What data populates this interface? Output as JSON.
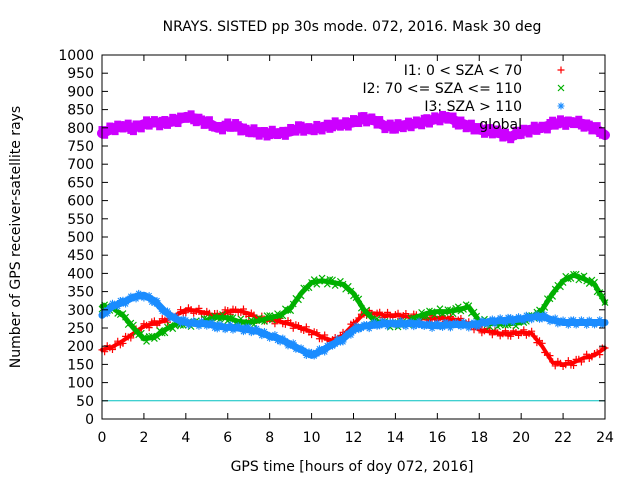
{
  "chart_data": {
    "type": "line",
    "title": "NRAYS. SISTED pp 30s mode. 072, 2016. Mask 30 deg",
    "xlabel": "GPS time [hours of doy 072, 2016]",
    "ylabel": "Number of GPS receiver-satellite rays",
    "xlim": [
      0,
      24
    ],
    "ylim": [
      0,
      1000
    ],
    "x_ticks": [
      "0",
      "2",
      "4",
      "6",
      "8",
      "10",
      "12",
      "14",
      "16",
      "18",
      "20",
      "22",
      "24"
    ],
    "y_ticks": [
      "0",
      "50",
      "100",
      "150",
      "200",
      "250",
      "300",
      "350",
      "400",
      "450",
      "500",
      "550",
      "600",
      "650",
      "700",
      "750",
      "800",
      "850",
      "900",
      "950",
      "1000"
    ],
    "legend_position": "top-right",
    "x": [
      0,
      0.5,
      1,
      1.5,
      2,
      2.5,
      3,
      3.5,
      4,
      4.5,
      5,
      5.5,
      6,
      6.5,
      7,
      7.5,
      8,
      8.5,
      9,
      9.5,
      10,
      10.5,
      11,
      11.5,
      12,
      12.5,
      13,
      13.5,
      14,
      14.5,
      15,
      15.5,
      16,
      16.5,
      17,
      17.5,
      18,
      18.5,
      19,
      19.5,
      20,
      20.5,
      21,
      21.5,
      22,
      22.5,
      23,
      23.5,
      24
    ],
    "series": [
      {
        "name": "I1: 0 < SZA < 70",
        "color": "#ff0000",
        "marker": "+",
        "values": [
          190,
          198,
          215,
          235,
          255,
          262,
          270,
          285,
          300,
          298,
          290,
          282,
          295,
          298,
          290,
          275,
          272,
          268,
          260,
          250,
          240,
          225,
          215,
          230,
          260,
          290,
          290,
          285,
          285,
          282,
          280,
          275,
          278,
          275,
          272,
          260,
          245,
          240,
          235,
          235,
          238,
          235,
          200,
          155,
          150,
          155,
          168,
          175,
          195
        ]
      },
      {
        "name": "I2: 70 <= SZA <= 110",
        "color": "#00b000",
        "marker": "x",
        "values": [
          310,
          305,
          285,
          250,
          220,
          225,
          245,
          260,
          262,
          262,
          270,
          280,
          278,
          268,
          265,
          270,
          278,
          285,
          305,
          345,
          375,
          380,
          375,
          370,
          345,
          300,
          270,
          262,
          258,
          262,
          280,
          290,
          295,
          295,
          300,
          308,
          270,
          262,
          262,
          262,
          265,
          280,
          300,
          345,
          380,
          395,
          385,
          370,
          320
        ]
      },
      {
        "name": "I3: SZA > 110",
        "color": "#1a8cff",
        "marker": "*",
        "values": [
          285,
          310,
          320,
          335,
          340,
          325,
          295,
          275,
          265,
          262,
          262,
          255,
          252,
          250,
          245,
          240,
          228,
          220,
          205,
          190,
          175,
          188,
          205,
          220,
          245,
          255,
          258,
          262,
          262,
          262,
          262,
          258,
          256,
          258,
          260,
          258,
          262,
          268,
          270,
          272,
          275,
          280,
          282,
          272,
          265,
          265,
          265,
          265,
          265
        ]
      },
      {
        "name": "global",
        "color": "#cc00ff",
        "marker": "square",
        "values": [
          785,
          798,
          805,
          800,
          810,
          815,
          812,
          820,
          830,
          825,
          815,
          800,
          805,
          803,
          790,
          788,
          785,
          785,
          790,
          800,
          795,
          802,
          808,
          810,
          815,
          825,
          820,
          805,
          803,
          808,
          812,
          818,
          825,
          830,
          815,
          805,
          795,
          790,
          785,
          775,
          790,
          795,
          800,
          810,
          815,
          815,
          810,
          800,
          780
        ]
      },
      {
        "name": "50",
        "color": "#00c0c0",
        "marker": "line",
        "values": [
          50,
          50,
          50,
          50,
          50,
          50,
          50,
          50,
          50,
          50,
          50,
          50,
          50,
          50,
          50,
          50,
          50,
          50,
          50,
          50,
          50,
          50,
          50,
          50,
          50,
          50,
          50,
          50,
          50,
          50,
          50,
          50,
          50,
          50,
          50,
          50,
          50,
          50,
          50,
          50,
          50,
          50,
          50,
          50,
          50,
          50,
          50,
          50,
          50
        ]
      }
    ]
  }
}
